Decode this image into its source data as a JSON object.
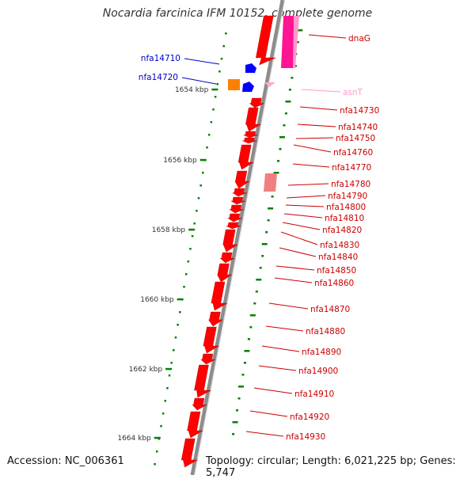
{
  "title": "Nocardia farcinica IFM 10152, complete genome",
  "footer": {
    "accession": "Accession: NC_006361",
    "summary": "Topology: circular; Length: 6,021,225 bp; Genes: 5,747"
  },
  "colors": {
    "backbone": "#8c8c8c",
    "gene_forward": "#ff0000",
    "gene_reverse": "#0000ff",
    "gene_other": "#ff8000",
    "trna": "#ff66cc",
    "highlight": "#ff1493",
    "pseudo": "#f08080",
    "ticks": "#008000",
    "label_red": "#cc0000",
    "label_blue": "#0000cc",
    "label_pink": "#ff99cc"
  },
  "scale_labels": [
    "1654 kbp",
    "1656 kbp",
    "1658 kbp",
    "1660 kbp",
    "1662 kbp",
    "1664 kbp"
  ],
  "gene_labels_left": [
    "nfa14710",
    "nfa14720"
  ],
  "gene_labels_right": [
    "dnaG",
    "asnT",
    "nfa14730",
    "nfa14740",
    "nfa14750",
    "nfa14760",
    "nfa14770",
    "nfa14780",
    "nfa14790",
    "nfa14800",
    "nfa14810",
    "nfa14820",
    "nfa14830",
    "nfa14840",
    "nfa14850",
    "nfa14860",
    "nfa14870",
    "nfa14880",
    "nfa14890",
    "nfa14900",
    "nfa14910",
    "nfa14920",
    "nfa14930"
  ]
}
